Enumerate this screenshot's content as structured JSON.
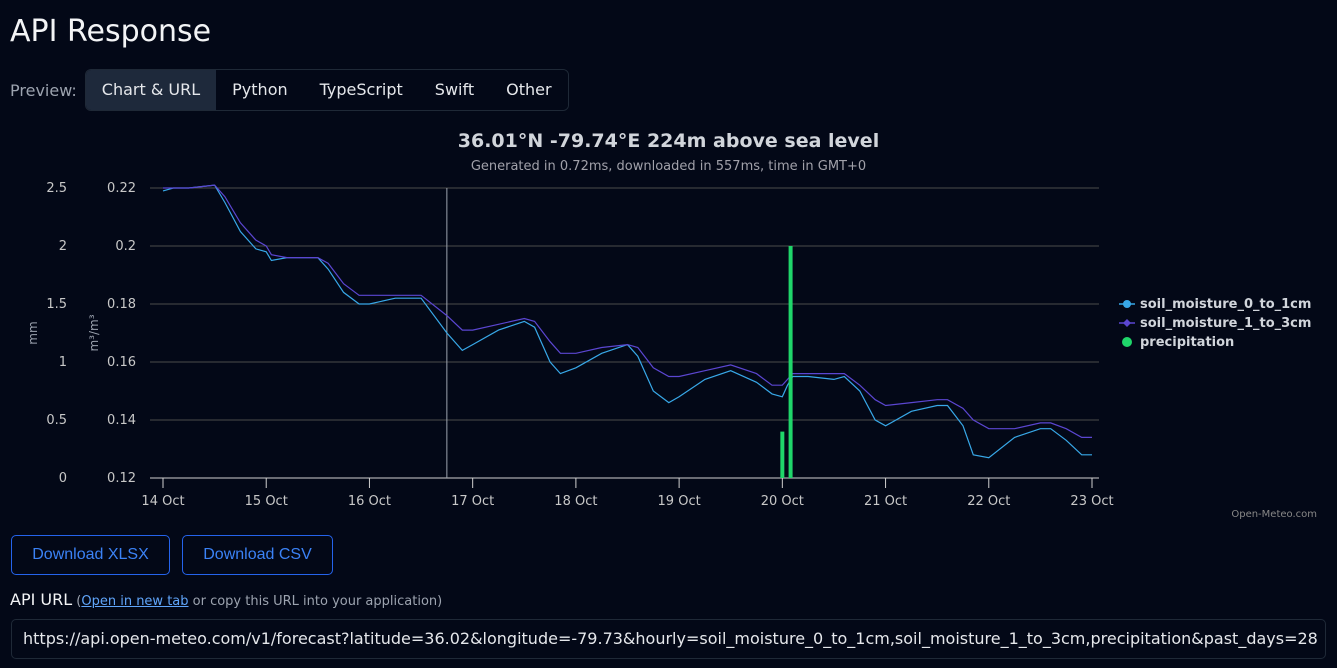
{
  "page": {
    "title": "API Response"
  },
  "preview": {
    "label": "Preview:",
    "tabs": [
      {
        "label": "Chart & URL",
        "active": true
      },
      {
        "label": "Python",
        "active": false
      },
      {
        "label": "TypeScript",
        "active": false
      },
      {
        "label": "Swift",
        "active": false
      },
      {
        "label": "Other",
        "active": false
      }
    ]
  },
  "chart_data": {
    "type": "line",
    "title": "36.01°N -79.74°E 224m above sea level",
    "subtitle": "Generated in 0.72ms, downloaded in 557ms, time in GMT+0",
    "credits": "Open-Meteo.com",
    "xlabel": "",
    "x_ticks": [
      "14 Oct",
      "15 Oct",
      "16 Oct",
      "17 Oct",
      "18 Oct",
      "19 Oct",
      "20 Oct",
      "21 Oct",
      "22 Oct",
      "23 Oct"
    ],
    "x_unit": "days since 14 Oct 00:00",
    "y_axes": [
      {
        "id": "precip",
        "label": "mm",
        "ticks": [
          0,
          0.5,
          1,
          1.5,
          2,
          2.5
        ],
        "ylim": [
          0,
          2.5
        ]
      },
      {
        "id": "soil",
        "label": "m³/m³",
        "ticks": [
          0.12,
          0.14,
          0.16,
          0.18,
          0.2,
          0.22
        ],
        "ylim": [
          0.12,
          0.22
        ]
      }
    ],
    "grid": true,
    "legend_position": "right",
    "current_time_marker_day": 2.75,
    "series": [
      {
        "name": "soil_moisture_0_to_1cm",
        "axis": "soil",
        "color": "#38a8e8",
        "marker": "circle",
        "x": [
          0,
          0.1,
          0.25,
          0.5,
          0.6,
          0.75,
          0.9,
          1.0,
          1.05,
          1.2,
          1.5,
          1.6,
          1.75,
          1.9,
          2.0,
          2.25,
          2.5,
          2.75,
          2.9,
          3.0,
          3.25,
          3.5,
          3.6,
          3.75,
          3.85,
          4.0,
          4.25,
          4.5,
          4.6,
          4.75,
          4.9,
          5.0,
          5.25,
          5.5,
          5.75,
          5.9,
          6.0,
          6.05,
          6.1,
          6.25,
          6.5,
          6.6,
          6.75,
          6.9,
          7.0,
          7.25,
          7.5,
          7.6,
          7.75,
          7.85,
          8.0,
          8.25,
          8.5,
          8.6,
          8.75,
          8.9,
          9.0
        ],
        "values": [
          0.219,
          0.22,
          0.22,
          0.221,
          0.215,
          0.205,
          0.199,
          0.198,
          0.195,
          0.196,
          0.196,
          0.192,
          0.184,
          0.18,
          0.18,
          0.182,
          0.182,
          0.17,
          0.164,
          0.166,
          0.171,
          0.174,
          0.172,
          0.16,
          0.156,
          0.158,
          0.163,
          0.166,
          0.162,
          0.15,
          0.146,
          0.148,
          0.154,
          0.157,
          0.153,
          0.149,
          0.148,
          0.152,
          0.155,
          0.155,
          0.154,
          0.155,
          0.15,
          0.14,
          0.138,
          0.143,
          0.145,
          0.145,
          0.138,
          0.128,
          0.127,
          0.134,
          0.137,
          0.137,
          0.133,
          0.128,
          0.128
        ]
      },
      {
        "name": "soil_moisture_1_to_3cm",
        "axis": "soil",
        "color": "#5b46d1",
        "marker": "diamond",
        "x": [
          0,
          0.1,
          0.25,
          0.5,
          0.6,
          0.75,
          0.9,
          1.0,
          1.05,
          1.2,
          1.5,
          1.6,
          1.75,
          1.9,
          2.0,
          2.25,
          2.5,
          2.75,
          2.9,
          3.0,
          3.25,
          3.5,
          3.6,
          3.75,
          3.85,
          4.0,
          4.25,
          4.5,
          4.6,
          4.75,
          4.9,
          5.0,
          5.25,
          5.5,
          5.75,
          5.9,
          6.0,
          6.05,
          6.1,
          6.25,
          6.5,
          6.6,
          6.75,
          6.9,
          7.0,
          7.25,
          7.5,
          7.6,
          7.75,
          7.85,
          8.0,
          8.25,
          8.5,
          8.6,
          8.75,
          8.9,
          9.0
        ],
        "values": [
          0.22,
          0.22,
          0.22,
          0.221,
          0.217,
          0.208,
          0.202,
          0.2,
          0.197,
          0.196,
          0.196,
          0.194,
          0.187,
          0.183,
          0.183,
          0.183,
          0.183,
          0.176,
          0.171,
          0.171,
          0.173,
          0.175,
          0.174,
          0.167,
          0.163,
          0.163,
          0.165,
          0.166,
          0.165,
          0.158,
          0.155,
          0.155,
          0.157,
          0.159,
          0.156,
          0.152,
          0.152,
          0.154,
          0.156,
          0.156,
          0.156,
          0.156,
          0.152,
          0.147,
          0.145,
          0.146,
          0.147,
          0.147,
          0.144,
          0.14,
          0.137,
          0.137,
          0.139,
          0.139,
          0.137,
          0.134,
          0.134
        ]
      },
      {
        "name": "precipitation",
        "axis": "precip",
        "type": "bar",
        "color": "#1fd66a",
        "marker": "circle",
        "x": [
          6.0,
          6.08
        ],
        "values": [
          0.4,
          2.0
        ]
      }
    ]
  },
  "actions": {
    "download_xlsx": "Download XLSX",
    "download_csv": "Download CSV"
  },
  "api_url": {
    "label": "API URL",
    "paren_open": " (",
    "open_link": "Open in new tab",
    "hint": " or copy this URL into your application)",
    "value": "https://api.open-meteo.com/v1/forecast?latitude=36.02&longitude=-79.73&hourly=soil_moisture_0_to_1cm,soil_moisture_1_to_3cm,precipitation&past_days=28"
  }
}
